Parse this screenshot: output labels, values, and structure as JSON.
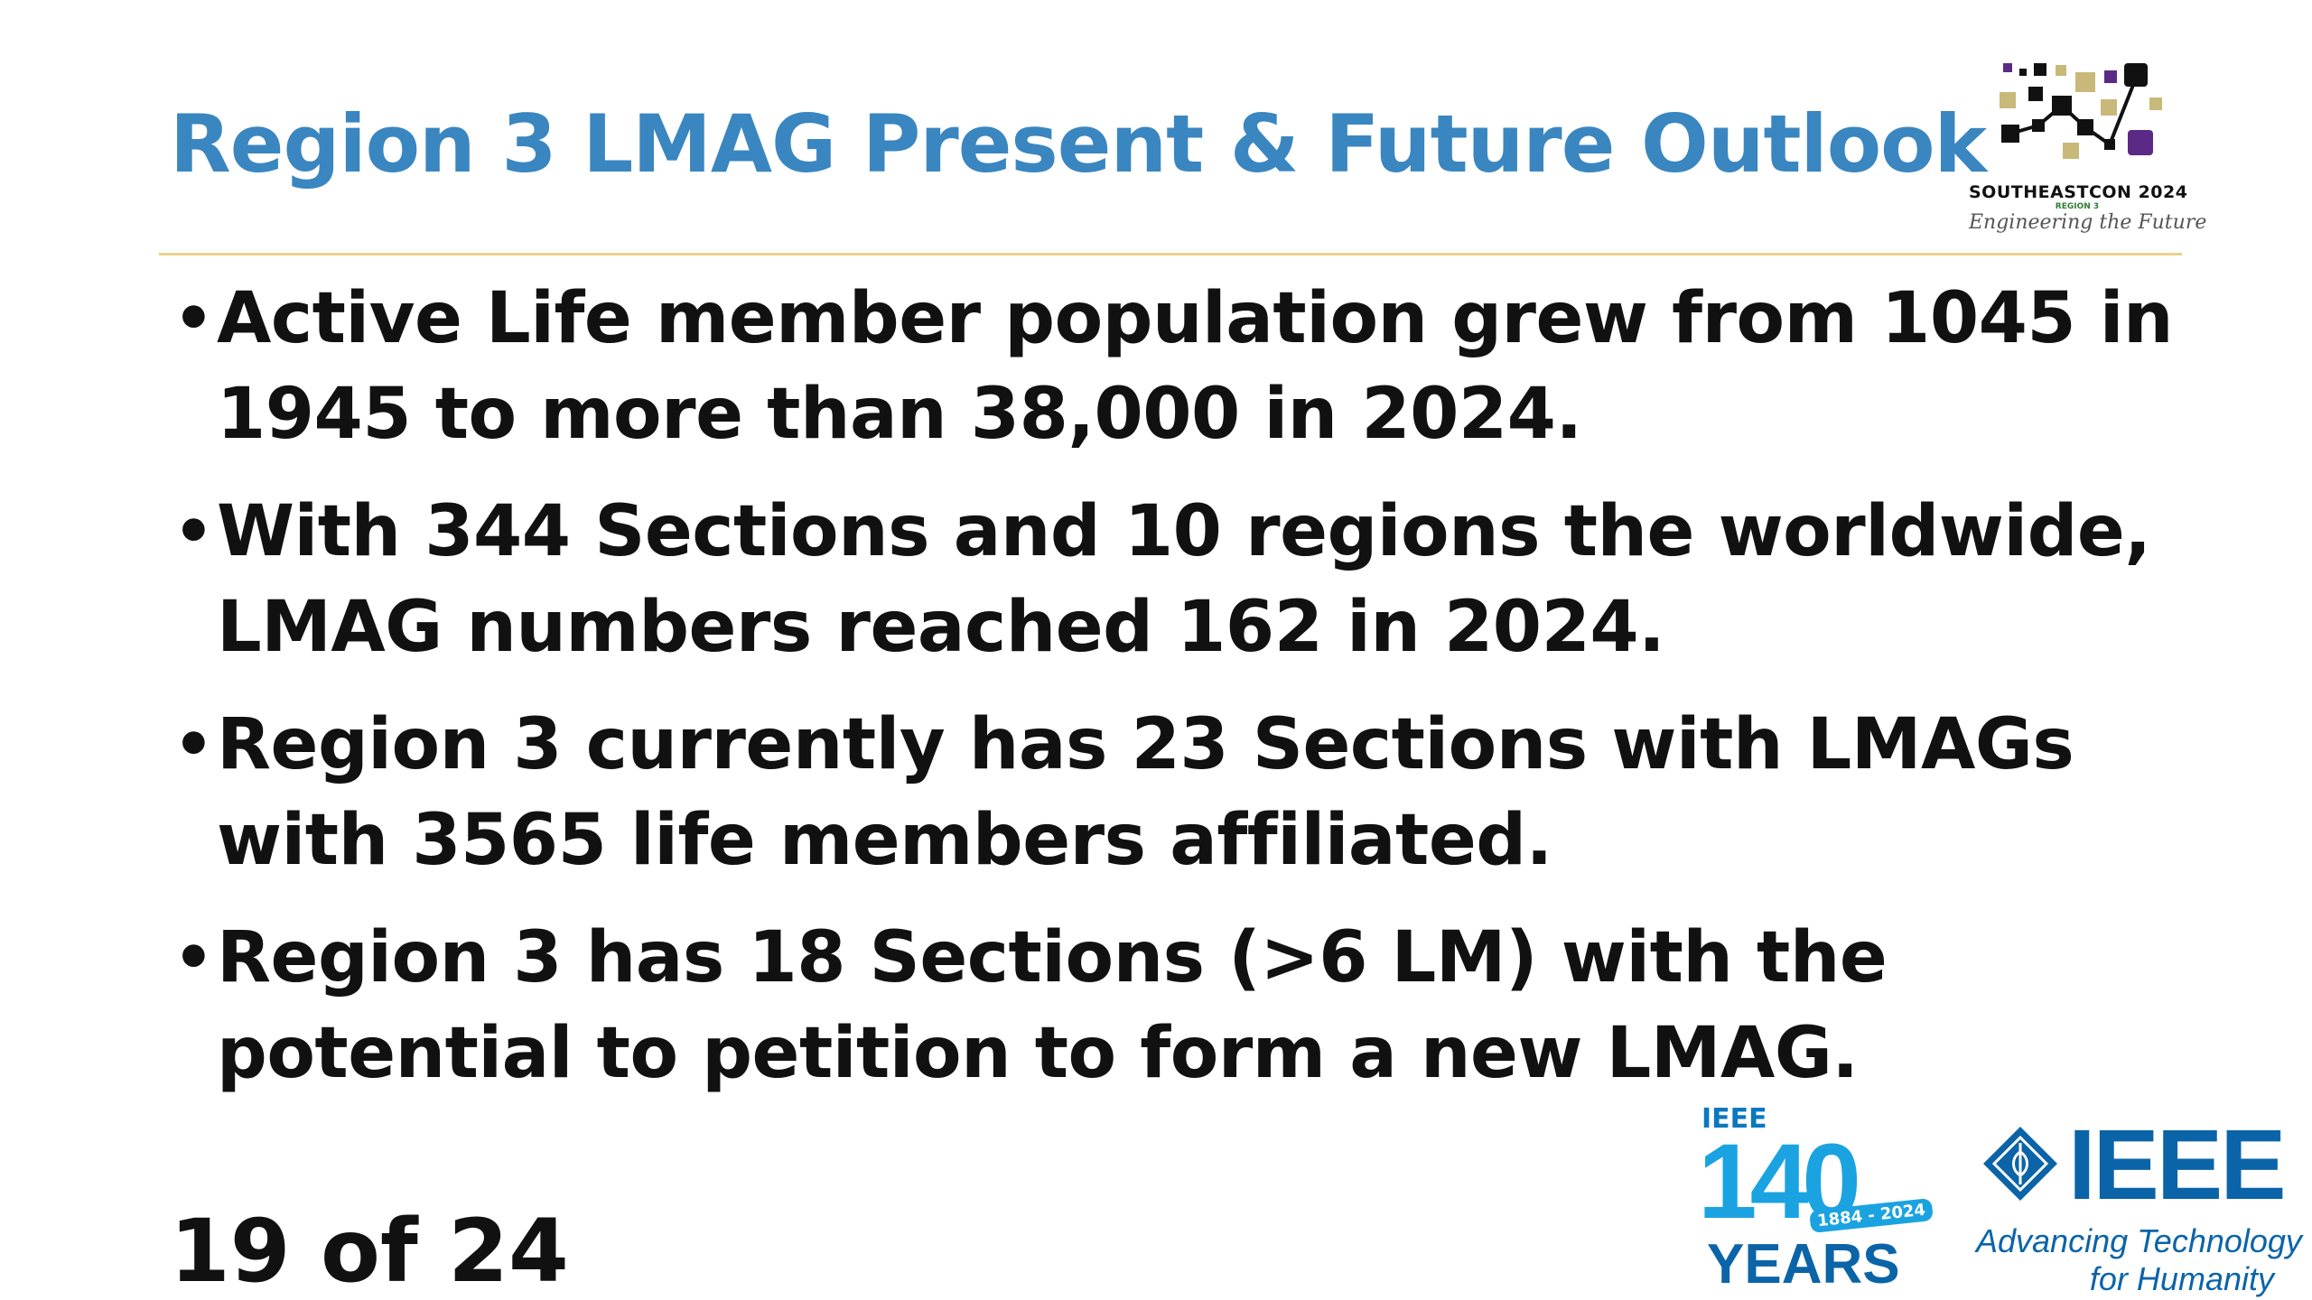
{
  "slide": {
    "title": "Region 3 LMAG Present & Future Outlook",
    "bullet_glyph": "•",
    "bullets": [
      "Active Life member population grew from 1045 in 1945 to more than 38,000 in 2024.",
      "With 344 Sections and 10 regions the worldwide, LMAG numbers reached 162 in 2024.",
      "Region 3 currently has 23 Sections with LMAGs with 3565 life members affiliated.",
      "Region 3 has 18 Sections (>6 LM) with the potential to petition to form a new LMAG."
    ],
    "page_number": "19 of 24"
  },
  "logos": {
    "conference": {
      "name": "SOUTHEASTCON 2024",
      "region": "REGION 3",
      "tagline": "Engineering the Future",
      "icon": "data-network-icon"
    },
    "anniversary": {
      "org": "IEEE",
      "number": "140",
      "range": "1884 - 2024",
      "word": "YEARS"
    },
    "ieee": {
      "word": "IEEE",
      "tagline_line1": "Advancing Technology",
      "tagline_line2": "for Humanity",
      "icon": "ieee-diamond-icon"
    }
  },
  "colors": {
    "title": "#3a86c0",
    "text": "#111111",
    "rule": "#e6d48e",
    "ieee_blue": "#0b64a8",
    "anniversary_blue": "#1aa3e0"
  }
}
